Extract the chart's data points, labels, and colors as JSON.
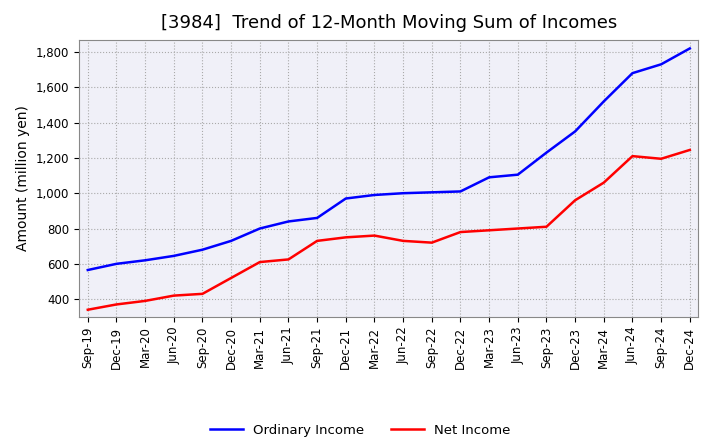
{
  "title": "[3984]  Trend of 12-Month Moving Sum of Incomes",
  "ylabel": "Amount (million yen)",
  "ylim": [
    300,
    1870
  ],
  "yticks": [
    400,
    600,
    800,
    1000,
    1200,
    1400,
    1600,
    1800
  ],
  "background_color": "#ffffff",
  "plot_bg_color": "#f0f0f8",
  "grid_color": "#aaaaaa",
  "ordinary_income_color": "#0000ff",
  "net_income_color": "#ff0000",
  "x_labels": [
    "Sep-19",
    "Dec-19",
    "Mar-20",
    "Jun-20",
    "Sep-20",
    "Dec-20",
    "Mar-21",
    "Jun-21",
    "Sep-21",
    "Dec-21",
    "Mar-22",
    "Jun-22",
    "Sep-22",
    "Dec-22",
    "Mar-23",
    "Jun-23",
    "Sep-23",
    "Dec-23",
    "Mar-24",
    "Jun-24",
    "Sep-24",
    "Dec-24"
  ],
  "ordinary_income": [
    565,
    600,
    620,
    645,
    680,
    730,
    800,
    840,
    860,
    970,
    990,
    1000,
    1005,
    1010,
    1090,
    1105,
    1230,
    1350,
    1520,
    1680,
    1730,
    1820
  ],
  "net_income": [
    340,
    370,
    390,
    420,
    430,
    520,
    610,
    625,
    730,
    750,
    760,
    730,
    720,
    780,
    790,
    800,
    810,
    960,
    1060,
    1210,
    1195,
    1245
  ],
  "legend_labels": [
    "Ordinary Income",
    "Net Income"
  ],
  "title_fontsize": 13,
  "tick_fontsize": 8.5,
  "label_fontsize": 10
}
